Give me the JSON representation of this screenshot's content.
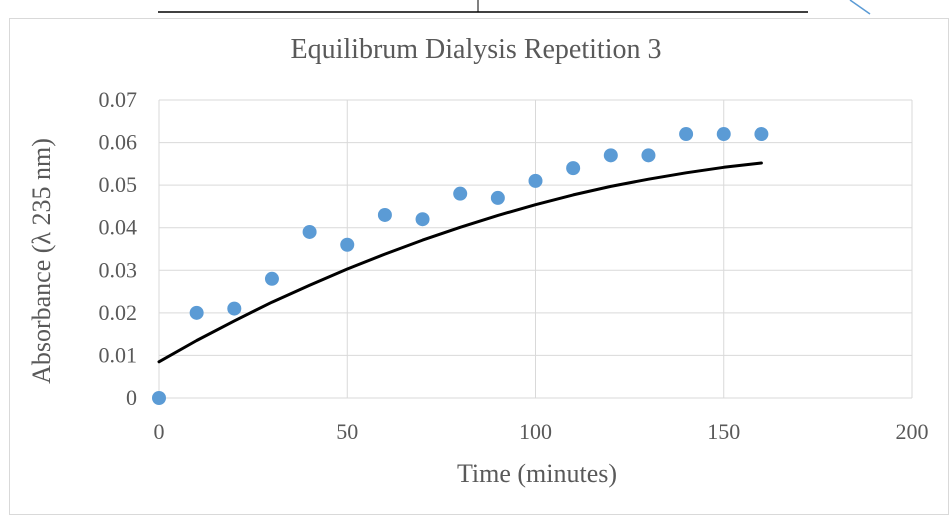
{
  "chart_data": {
    "type": "scatter",
    "title": "Equilibrum Dialysis Repetition 3",
    "xlabel": "Time (minutes)",
    "ylabel": "Absorbance (λ 235 nm)",
    "xlim": [
      0,
      200
    ],
    "ylim": [
      0,
      0.07
    ],
    "x_ticks": [
      "0",
      "50",
      "100",
      "150",
      "200"
    ],
    "y_ticks": [
      "0",
      "0.01",
      "0.02",
      "0.03",
      "0.04",
      "0.05",
      "0.06",
      "0.07"
    ],
    "grid": true,
    "legend": "none",
    "series": [
      {
        "color": "#5b9bd5",
        "x": [
          0,
          10,
          20,
          30,
          40,
          50,
          60,
          70,
          80,
          90,
          100,
          110,
          120,
          130,
          140,
          150,
          160
        ],
        "y": [
          0,
          0.02,
          0.021,
          0.028,
          0.039,
          0.036,
          0.043,
          0.042,
          0.048,
          0.047,
          0.051,
          0.054,
          0.057,
          0.057,
          0.062,
          0.062,
          0.062
        ]
      }
    ],
    "trendline": {
      "type": "polynomial",
      "color": "#000000",
      "x": [
        0,
        10,
        20,
        30,
        40,
        50,
        60,
        70,
        80,
        90,
        100,
        110,
        120,
        130,
        140,
        150,
        160
      ],
      "y": [
        0.0085,
        0.0135,
        0.0181,
        0.0225,
        0.0265,
        0.0303,
        0.0338,
        0.0371,
        0.0401,
        0.0429,
        0.0454,
        0.0477,
        0.0497,
        0.0514,
        0.0529,
        0.0542,
        0.0552
      ]
    }
  }
}
